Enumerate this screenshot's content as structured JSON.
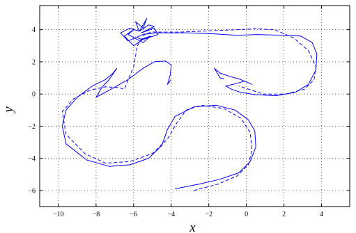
{
  "chart_data": {
    "type": "line",
    "title": "",
    "xlabel": "x",
    "ylabel": "y",
    "xlim": [
      -11,
      5.5
    ],
    "ylim": [
      -7,
      5.5
    ],
    "xticks": [
      -10,
      -8,
      -6,
      -4,
      -2,
      0,
      2,
      4
    ],
    "yticks": [
      -6,
      -4,
      -2,
      0,
      2,
      4
    ],
    "xtick_labels": [
      "−10",
      "−8",
      "−6",
      "−4",
      "−2",
      "0",
      "2",
      "4"
    ],
    "ytick_labels": [
      "−6",
      "−4",
      "−2",
      "0",
      "2",
      "4"
    ],
    "grid": true,
    "legend": null,
    "line_color": "#0000ff",
    "series": [
      {
        "style": "dashed",
        "x": [
          -2.8,
          -1.5,
          -0.5,
          0.1,
          0.3,
          0.2,
          -0.3,
          -1.2,
          -2.4,
          -3.2,
          -3.7,
          -4.2,
          -5.0,
          -6.2,
          -7.5,
          -8.6,
          -9.6,
          -9.8,
          -9.2,
          -8.3,
          -7.5,
          -6.8,
          -6.5,
          -6.0,
          -5.8,
          -5.4,
          -5.0,
          -3.5,
          -1.5,
          0.5,
          1.5,
          2.5,
          3.3,
          3.7,
          3.6,
          3.1,
          2.1,
          0.9,
          -0.4
        ],
        "y": [
          -6.0,
          -5.6,
          -5.1,
          -4.4,
          -3.5,
          -2.4,
          -1.5,
          -0.9,
          -0.7,
          -1.0,
          -1.8,
          -2.8,
          -3.7,
          -4.2,
          -4.3,
          -3.7,
          -2.5,
          -1.1,
          -0.3,
          0.25,
          0.45,
          0.4,
          0.3,
          1.7,
          3.0,
          3.75,
          3.85,
          3.85,
          3.95,
          4.05,
          4.0,
          3.5,
          2.7,
          1.7,
          0.9,
          0.3,
          0.0,
          0.0,
          0.5
        ]
      },
      {
        "style": "solid",
        "x": [
          -3.8,
          -2.5,
          -1.4,
          -0.4,
          0.2,
          0.5,
          0.45,
          0.1,
          -0.6,
          -1.6,
          -2.8,
          -3.8,
          -4.2,
          -4.5,
          -5.2,
          -6.2,
          -7.3,
          -8.5,
          -9.6,
          -9.8,
          -9.6,
          -9.0,
          -8.2,
          -7.5,
          -7.1,
          -6.9,
          -7.3,
          -7.7,
          -8.0,
          -7.2,
          -6.3,
          -5.5,
          -4.9,
          -4.3,
          -4.0,
          -4.05,
          -4.2,
          -4.0
        ],
        "y": [
          -5.9,
          -5.6,
          -5.3,
          -4.9,
          -4.2,
          -3.3,
          -2.3,
          -1.6,
          -1.0,
          -0.7,
          -0.8,
          -1.4,
          -2.2,
          -3.2,
          -4.0,
          -4.4,
          -4.5,
          -4.1,
          -3.1,
          -2.0,
          -1.0,
          -0.2,
          0.5,
          0.9,
          1.3,
          1.6,
          0.9,
          0.4,
          -0.2,
          0.3,
          0.9,
          1.6,
          2.0,
          2.05,
          1.8,
          1.2,
          0.6,
          0.9
        ]
      },
      {
        "style": "solid",
        "x": [
          -5.9,
          -5.5,
          -4.8,
          -3.2,
          -1.8,
          -0.5,
          0.6,
          2.0,
          2.9,
          3.5,
          3.75,
          3.7,
          3.3,
          2.6,
          1.6,
          0.5,
          -0.3,
          -0.8,
          -1.1,
          -0.7,
          -0.1,
          0.3,
          -0.3,
          -0.9,
          -1.4,
          -1.7,
          -1.4,
          -1.2
        ],
        "y": [
          3.5,
          3.7,
          3.8,
          3.8,
          3.75,
          3.65,
          3.7,
          3.65,
          3.6,
          3.2,
          2.5,
          1.5,
          0.6,
          0.1,
          -0.1,
          -0.05,
          0.1,
          0.3,
          0.5,
          0.6,
          0.8,
          0.6,
          0.9,
          1.1,
          1.3,
          1.6,
          1.0,
          0.95
        ]
      },
      {
        "style": "solid",
        "x": [
          -5.9,
          -6.3,
          -6.7,
          -6.2,
          -5.7,
          -5.9,
          -5.5,
          -5.3,
          -5.7,
          -5.2,
          -4.9,
          -5.6,
          -4.9,
          -4.7,
          -5.5,
          -6.0,
          -6.5,
          -6.0,
          -6.3,
          -5.5,
          -5.1,
          -5.6,
          -5.8
        ],
        "y": [
          3.5,
          3.3,
          3.8,
          4.1,
          3.9,
          4.5,
          4.1,
          4.7,
          3.9,
          4.3,
          4.2,
          3.8,
          4.1,
          3.7,
          3.4,
          3.0,
          3.6,
          4.0,
          3.7,
          3.2,
          3.6,
          3.4,
          3.5
        ]
      }
    ]
  }
}
